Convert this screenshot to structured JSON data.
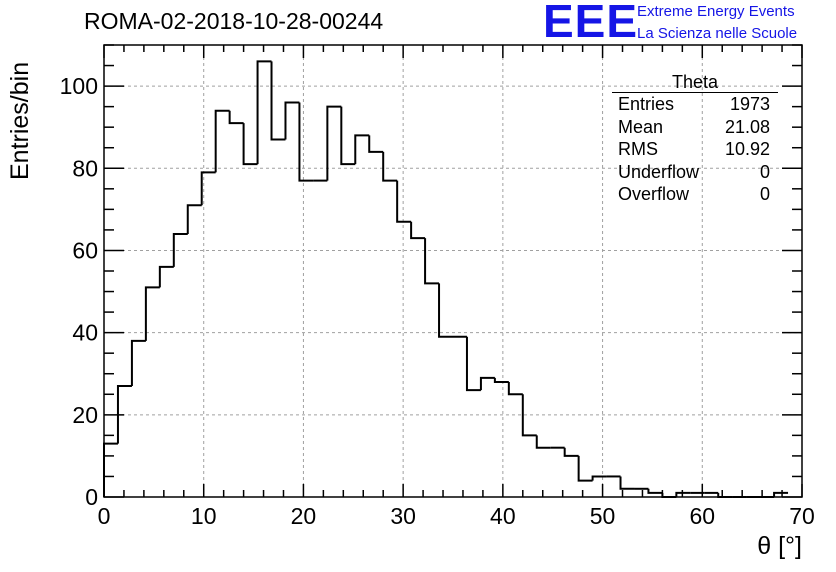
{
  "title": "ROMA-02-2018-10-28-00244",
  "logo": {
    "mark": "EEE",
    "line1": "Extreme Energy Events",
    "line2": "La Scienza nelle Scuole",
    "color": "#1515e6"
  },
  "stats_box": {
    "title": "Theta",
    "rows": [
      {
        "label": "Entries",
        "value": "1973"
      },
      {
        "label": "Mean",
        "value": "21.08"
      },
      {
        "label": "RMS",
        "value": "10.92"
      },
      {
        "label": "Underflow",
        "value": "0"
      },
      {
        "label": "Overflow",
        "value": "0"
      }
    ]
  },
  "chart_data": {
    "type": "bar",
    "style": "step-histogram",
    "title": "ROMA-02-2018-10-28-00244",
    "xlabel": "θ [°]",
    "ylabel": "Entries/bin",
    "xlim": [
      0,
      70
    ],
    "ylim": [
      0,
      110
    ],
    "grid": true,
    "x_ticks": [
      "0",
      "10",
      "20",
      "30",
      "40",
      "50",
      "60",
      "70"
    ],
    "y_ticks": [
      "0",
      "20",
      "40",
      "60",
      "80",
      "100"
    ],
    "bin_edges": [
      0,
      1.4,
      2.8,
      4.2,
      5.6,
      7.0,
      8.4,
      9.8,
      11.2,
      12.6,
      14.0,
      15.4,
      16.8,
      18.2,
      19.6,
      21.0,
      22.4,
      23.8,
      25.2,
      26.6,
      28.0,
      29.4,
      30.8,
      32.2,
      33.6,
      35.0,
      36.4,
      37.8,
      39.2,
      40.6,
      42.0,
      43.4,
      44.8,
      46.2,
      47.6,
      49.0,
      50.4,
      51.8,
      53.2,
      54.6,
      56.0,
      57.4,
      58.8,
      60.2,
      61.6,
      63.0,
      64.4,
      65.8,
      67.2,
      68.6
    ],
    "values": [
      13,
      27,
      38,
      51,
      56,
      64,
      71,
      79,
      94,
      91,
      81,
      106,
      87,
      96,
      77,
      77,
      95,
      81,
      88,
      84,
      77,
      67,
      63,
      52,
      39,
      39,
      26,
      29,
      28,
      25,
      15,
      12,
      12,
      10,
      4,
      5,
      5,
      2,
      2,
      1,
      0,
      1,
      1,
      1,
      0,
      0,
      0,
      0,
      1
    ],
    "axis_color": "#000000",
    "grid_color": "#a0a0a0"
  }
}
